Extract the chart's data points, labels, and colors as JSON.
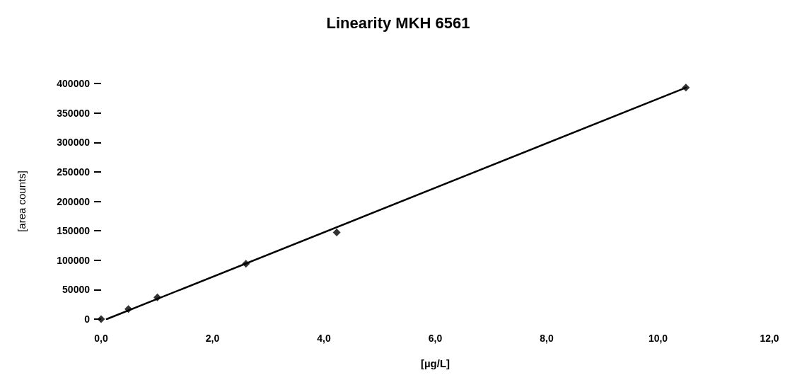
{
  "chart_data": {
    "type": "scatter",
    "title": "Linearity MKH 6561",
    "xlabel": "[µg/L]",
    "ylabel": "[area counts]",
    "series": [
      {
        "color": "#000000",
        "marker": "diamond",
        "x": [
          0,
          0.49,
          1.01,
          2.6,
          4.23,
          10.5
        ],
        "values": [
          0,
          17000,
          37000,
          94000,
          147000,
          393000
        ]
      },
      {
        "type": "line",
        "color": "#000000",
        "marker": "none",
        "x": [
          0.1,
          10.5
        ],
        "values": [
          0,
          393000
        ]
      }
    ],
    "xlim": [
      0,
      12
    ],
    "xticks": [
      {
        "value": 0,
        "label": "0,0"
      },
      {
        "value": 2,
        "label": "2,0"
      },
      {
        "value": 4,
        "label": "4,0"
      },
      {
        "value": 6,
        "label": "6,0"
      },
      {
        "value": 8,
        "label": "8,0"
      },
      {
        "value": 10,
        "label": "10,0"
      },
      {
        "value": 12,
        "label": "12,0"
      }
    ],
    "ylim": [
      0,
      400000
    ],
    "yticks": [
      0,
      50000,
      100000,
      150000,
      200000,
      250000,
      300000,
      350000,
      400000
    ],
    "grid": false
  }
}
